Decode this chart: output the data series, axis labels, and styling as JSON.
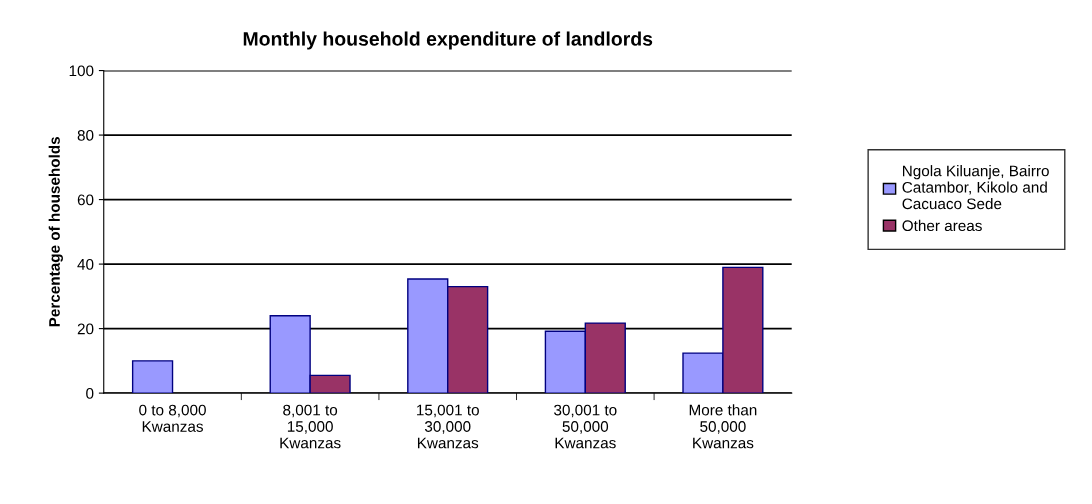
{
  "chart_data": {
    "type": "bar",
    "title": "Monthly household expenditure of landlords",
    "ylabel": "Percentage of households",
    "categories": [
      "0 to 8,000 Kwanzas",
      "8,001 to 15,000 Kwanzas",
      "15,001 to 30,000 Kwanzas",
      "30,001 to 50,000 Kwanzas",
      "More than 50,000 Kwanzas"
    ],
    "series": [
      {
        "name": "Ngola Kiluanje, Bairro Catambor, Kikolo and Cacuaco Sede",
        "color": "#9999ff",
        "values": [
          10,
          24,
          35.4,
          19.2,
          12.4
        ]
      },
      {
        "name": "Other areas",
        "color": "#993366",
        "values": [
          null,
          5.5,
          33,
          21.7,
          39
        ]
      }
    ],
    "ylim": [
      0,
      100
    ],
    "yticks": [
      0,
      20,
      40,
      60,
      80,
      100
    ],
    "grid": "y",
    "legend": "right"
  }
}
